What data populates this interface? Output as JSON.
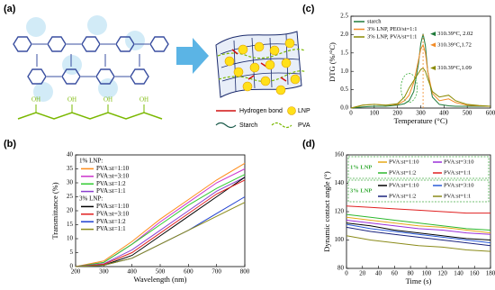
{
  "diagram": {
    "label": "(a)",
    "pva_labels": [
      "OH",
      "OH",
      "OH",
      "OH"
    ],
    "legend": {
      "hydrogen_bond": "Hydrogen bond",
      "lnp": "LNP",
      "starch": "Starch",
      "pva": "PVA"
    }
  },
  "chart_data": [
    {
      "type": "line",
      "label": "(b)",
      "xlabel": "Wavelength (nm)",
      "ylabel": "Transmittance (%)",
      "x": [
        200,
        300,
        400,
        500,
        600,
        700,
        800
      ],
      "xlim": [
        200,
        800
      ],
      "xticks": [
        200,
        300,
        400,
        500,
        600,
        700,
        800
      ],
      "ylim": [
        0,
        40
      ],
      "yticks": [
        0,
        5,
        10,
        15,
        20,
        25,
        30,
        35,
        40
      ],
      "groups": [
        {
          "name": "1% LNP:",
          "series": [
            {
              "name": "PVA:st=1:10",
              "color": "#ff8c1a",
              "values": [
                0,
                2,
                9,
                17,
                24,
                31,
                37
              ]
            },
            {
              "name": "PVA:st=3:10",
              "color": "#cc33cc",
              "values": [
                0,
                1.5,
                8,
                16,
                23,
                30,
                35
              ]
            },
            {
              "name": "PVA:st=1:2",
              "color": "#33cc33",
              "values": [
                0,
                1.5,
                8,
                15,
                22,
                28,
                33
              ]
            },
            {
              "name": "PVA:st=1:1",
              "color": "#8a3fd0",
              "values": [
                0,
                1,
                6,
                13,
                20,
                27,
                32
              ]
            }
          ]
        },
        {
          "name": "3% LNP:",
          "series": [
            {
              "name": "PVA:st=1:10",
              "color": "#000000",
              "values": [
                0,
                0.5,
                4,
                11,
                18,
                25,
                32
              ]
            },
            {
              "name": "PVA:st=3:10",
              "color": "#e02020",
              "values": [
                0,
                0.8,
                5,
                12,
                19,
                26,
                31
              ]
            },
            {
              "name": "PVA:st=1:2",
              "color": "#2040d0",
              "values": [
                0,
                0.5,
                3,
                8,
                13,
                19,
                25
              ]
            },
            {
              "name": "PVA:st=1:1",
              "color": "#8b8b1a",
              "values": [
                0,
                0.5,
                3,
                8,
                13,
                18,
                23
              ]
            }
          ]
        }
      ]
    },
    {
      "type": "line",
      "label": "(c)",
      "xlabel": "Temperature (°C)",
      "ylabel": "DTG (%/°C)",
      "x": [
        0,
        50,
        100,
        150,
        200,
        230,
        250,
        270,
        290,
        300,
        310,
        320,
        330,
        350,
        380,
        420,
        450,
        500,
        550,
        600
      ],
      "xlim": [
        0,
        600
      ],
      "xticks": [
        0,
        100,
        200,
        300,
        400,
        500,
        600
      ],
      "ylim": [
        0,
        2.5
      ],
      "yticks": [
        {
          "value": 0,
          "label": "0.0"
        },
        0.5,
        {
          "value": 1,
          "label": "1.0"
        },
        1.5,
        {
          "value": 2,
          "label": "2.0"
        },
        2.5
      ],
      "series": [
        {
          "name": "starch",
          "color": "#1f7a3a",
          "values": [
            0,
            0.03,
            0.05,
            0.05,
            0.08,
            0.12,
            0.2,
            0.45,
            1.2,
            1.75,
            2.02,
            1.7,
            1.0,
            0.3,
            0.1,
            0.06,
            0.05,
            0.05,
            0.05,
            0.05
          ]
        },
        {
          "name": "3% LNP, PEO/st=1:1",
          "color": "#f28c28",
          "values": [
            0,
            0.08,
            0.1,
            0.08,
            0.1,
            0.2,
            0.35,
            0.7,
            1.3,
            1.6,
            1.72,
            1.5,
            1.0,
            0.4,
            0.2,
            0.25,
            0.15,
            0.08,
            0.06,
            0.05
          ]
        },
        {
          "name": "3% LNP, PVA/st=1:1",
          "color": "#8a8a00",
          "values": [
            0,
            0.08,
            0.1,
            0.08,
            0.12,
            0.3,
            0.55,
            0.75,
            0.95,
            1.05,
            1.09,
            1.0,
            0.8,
            0.45,
            0.3,
            0.35,
            0.2,
            0.1,
            0.07,
            0.05
          ]
        }
      ],
      "annotations": [
        "310.39°C, 2.02",
        "310.39°C,1.72",
        "310.39°C,1.09"
      ]
    },
    {
      "type": "line",
      "label": "(d)",
      "xlabel": "Time (s)",
      "ylabel": "Dynamic contact angle (°)",
      "x": [
        0,
        30,
        60,
        90,
        120,
        150,
        180
      ],
      "xlim": [
        0,
        180
      ],
      "xticks": [
        0,
        20,
        40,
        60,
        80,
        100,
        120,
        140,
        160,
        180
      ],
      "ylim": [
        80,
        160
      ],
      "yticks": [
        80,
        100,
        120,
        140,
        160
      ],
      "groups": [
        {
          "name": "1% LNP",
          "series": [
            {
              "name": "PVA:st=1:10",
              "color": "#e6a817",
              "values": [
                116,
                114,
                112,
                110,
                109,
                107,
                105
              ]
            },
            {
              "name": "PVA:st=3:10",
              "color": "#9b30d9",
              "values": [
                114,
                112,
                110,
                108,
                107,
                105,
                104
              ]
            },
            {
              "name": "PVA:st=1:2",
              "color": "#2db82d",
              "values": [
                118,
                116,
                114,
                112,
                110,
                108,
                107
              ]
            },
            {
              "name": "PVA:st=1:1",
              "color": "#e02020",
              "values": [
                124,
                123,
                122,
                121,
                120,
                119,
                119
              ]
            }
          ]
        },
        {
          "name": "3% LNP",
          "series": [
            {
              "name": "PVA:st=1:10",
              "color": "#000000",
              "values": [
                112,
                110,
                107,
                105,
                103,
                101,
                100
              ]
            },
            {
              "name": "PVA:st=3:10",
              "color": "#2a5bd7",
              "values": [
                111,
                108,
                106,
                104,
                102,
                100,
                98
              ]
            },
            {
              "name": "PVA:st=1:2",
              "color": "#1a237e",
              "values": [
                109,
                106,
                104,
                102,
                100,
                98,
                96
              ]
            },
            {
              "name": "PVA:st=1:1",
              "color": "#8b8b1a",
              "values": [
                103,
                100,
                98,
                96,
                95,
                93,
                92
              ]
            }
          ]
        }
      ]
    }
  ]
}
